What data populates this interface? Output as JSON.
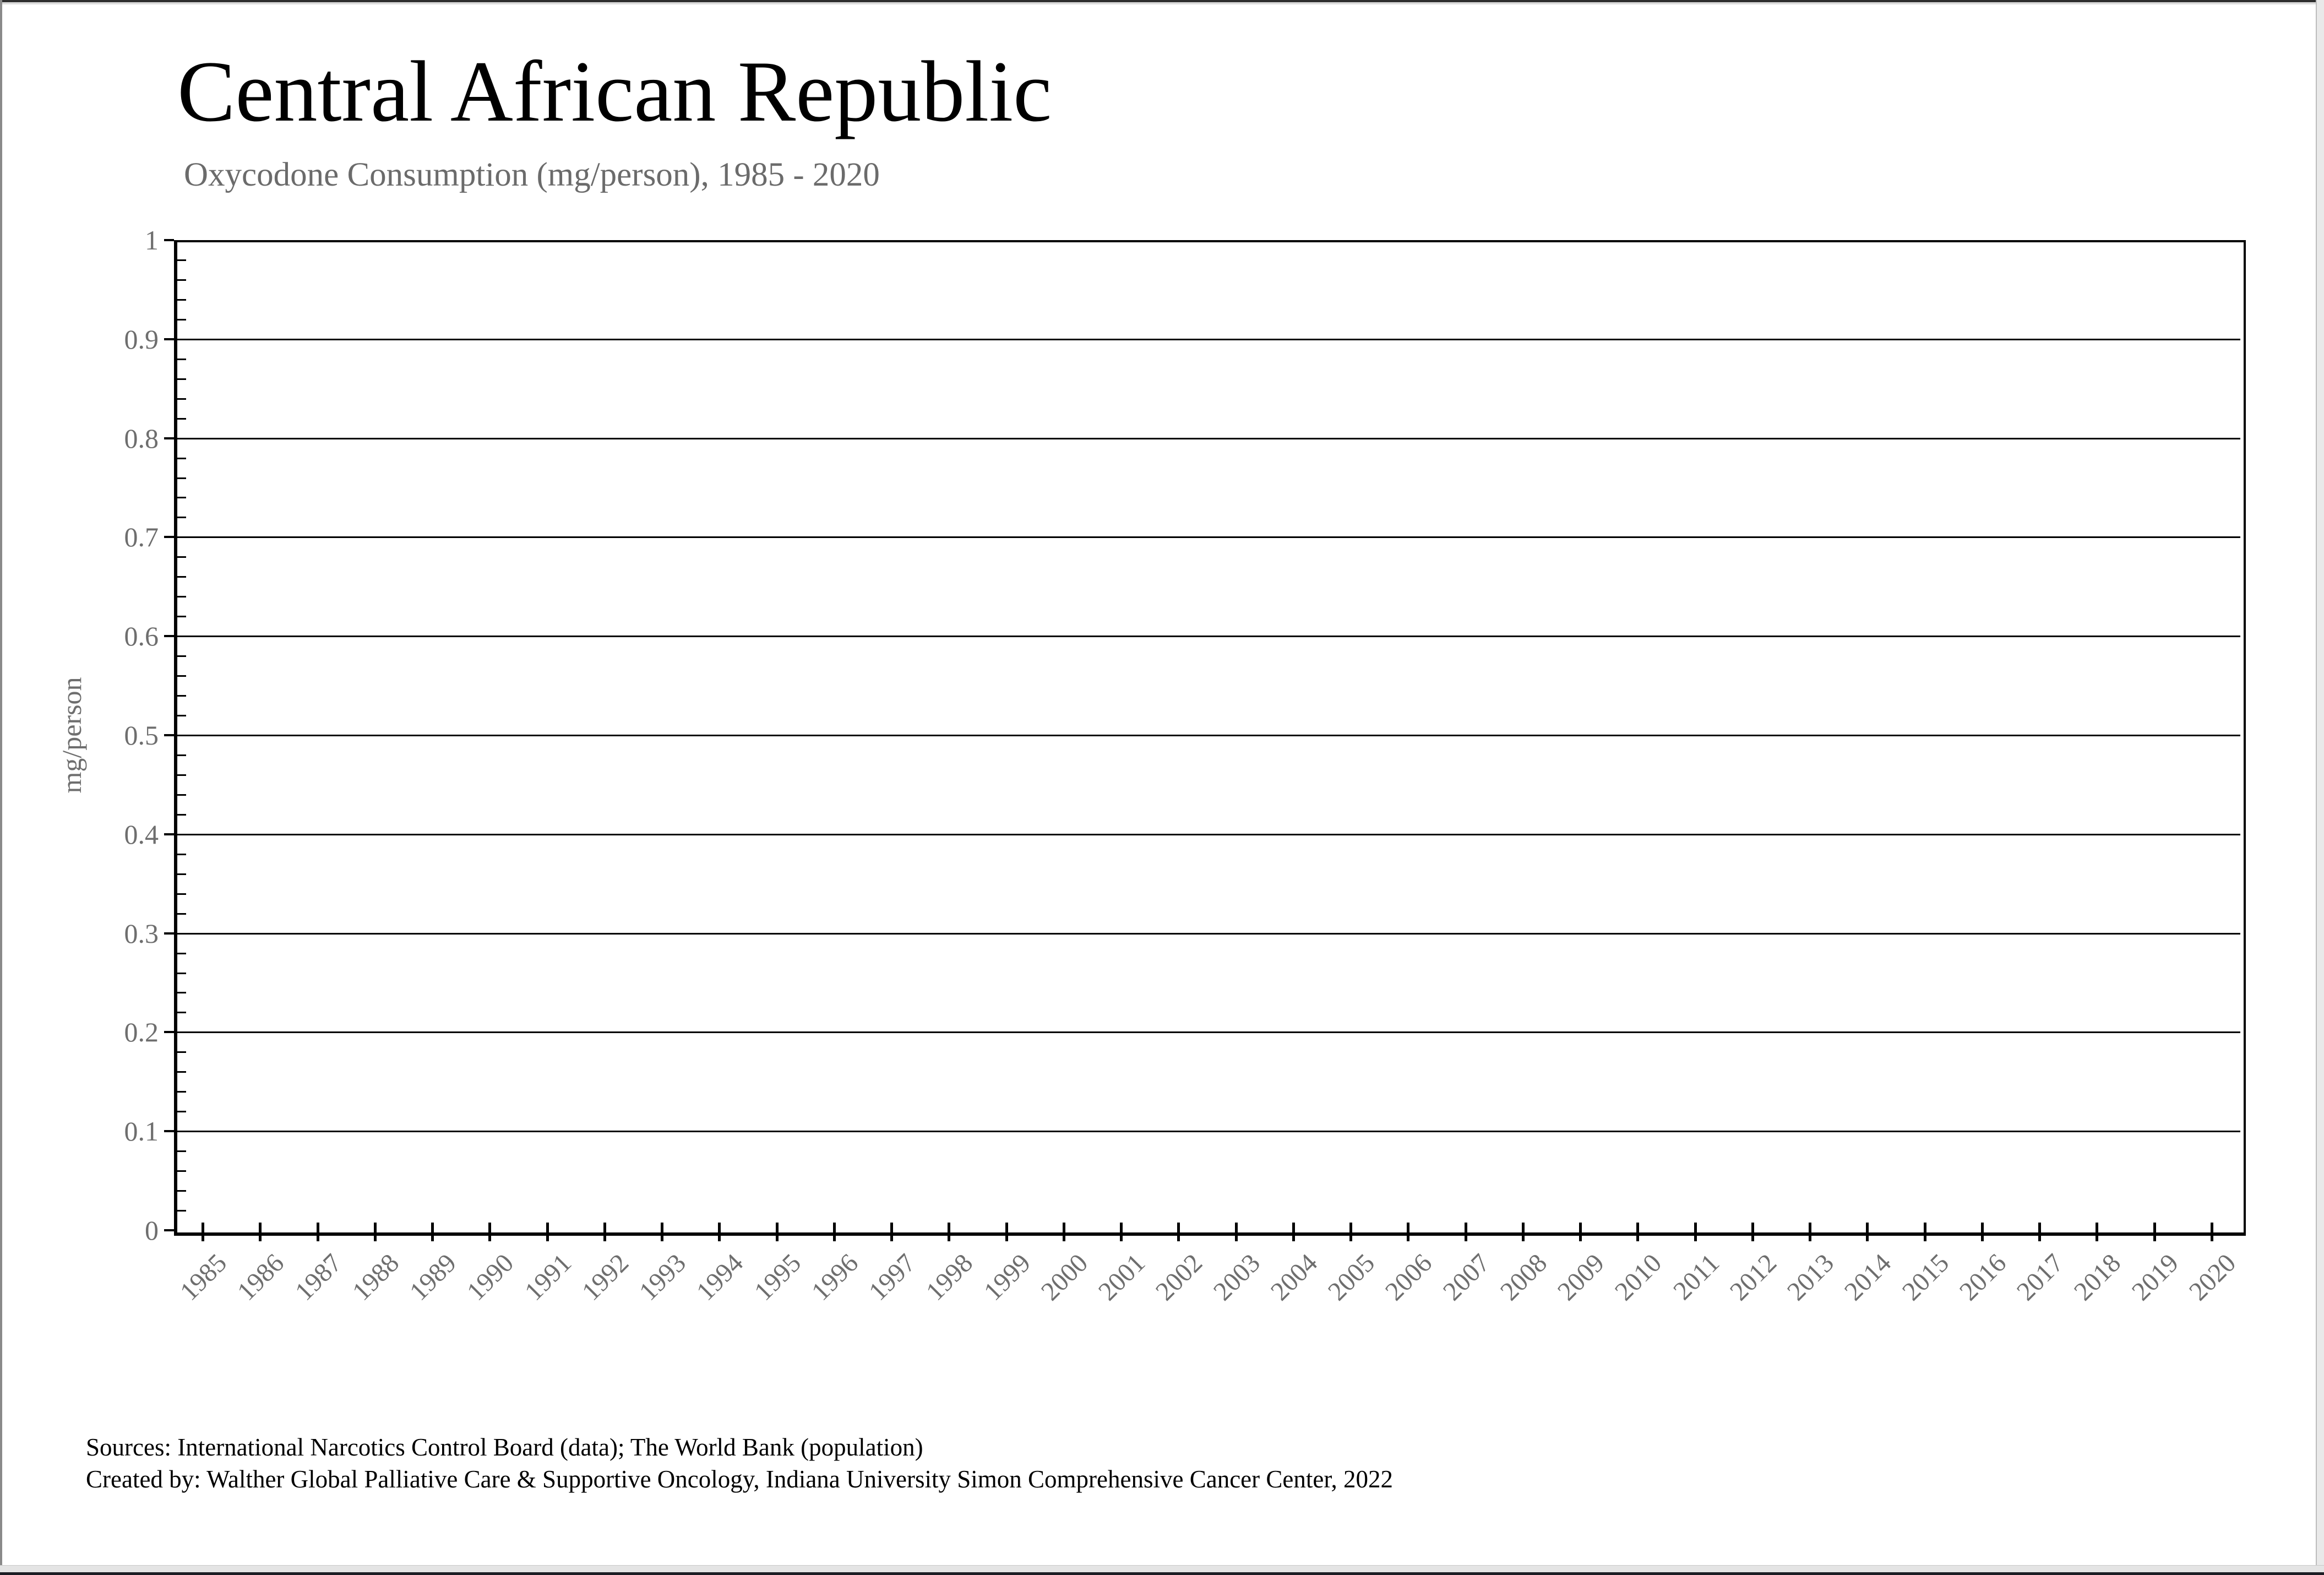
{
  "header": {
    "title": "Central African Republic",
    "subtitle": "Oxycodone Consumption (mg/person), 1985 - 2020"
  },
  "chart": {
    "y_axis_label": "mg/person",
    "y_ticks": [
      "1",
      "0.9",
      "0.8",
      "0.7",
      "0.6",
      "0.5",
      "0.4",
      "0.3",
      "0.2",
      "0.1",
      "0"
    ]
  },
  "footer": {
    "line1": "Sources: International Narcotics Control Board (data); The World Bank (population)",
    "line2": "Created by: Walther Global Palliative Care & Supportive Oncology, Indiana University Simon Comprehensive Cancer Center, 2022"
  },
  "colors": {
    "text_primary": "#000000",
    "text_muted": "#6b6b6b",
    "axis_and_grid": "#000000",
    "chrome_light_gray": "#e4e4e4",
    "chrome_dark_bar": "#1c1d24"
  },
  "chart_data": {
    "type": "line",
    "title": "Oxycodone Consumption (mg/person), 1985 - 2020",
    "country": "Central African Republic",
    "categories": [
      1985,
      1986,
      1987,
      1988,
      1989,
      1990,
      1991,
      1992,
      1993,
      1994,
      1995,
      1996,
      1997,
      1998,
      1999,
      2000,
      2001,
      2002,
      2003,
      2004,
      2005,
      2006,
      2007,
      2008,
      2009,
      2010,
      2011,
      2012,
      2013,
      2014,
      2015,
      2016,
      2017,
      2018,
      2019,
      2020
    ],
    "series": [],
    "xlabel": "",
    "ylabel": "mg/person",
    "ylim": [
      0,
      1
    ],
    "y_tick_step": 0.1,
    "y_minor_tick_step": 0.02,
    "grid": "horizontal-major-on",
    "legend": "none",
    "plotted_values_visible": false
  }
}
